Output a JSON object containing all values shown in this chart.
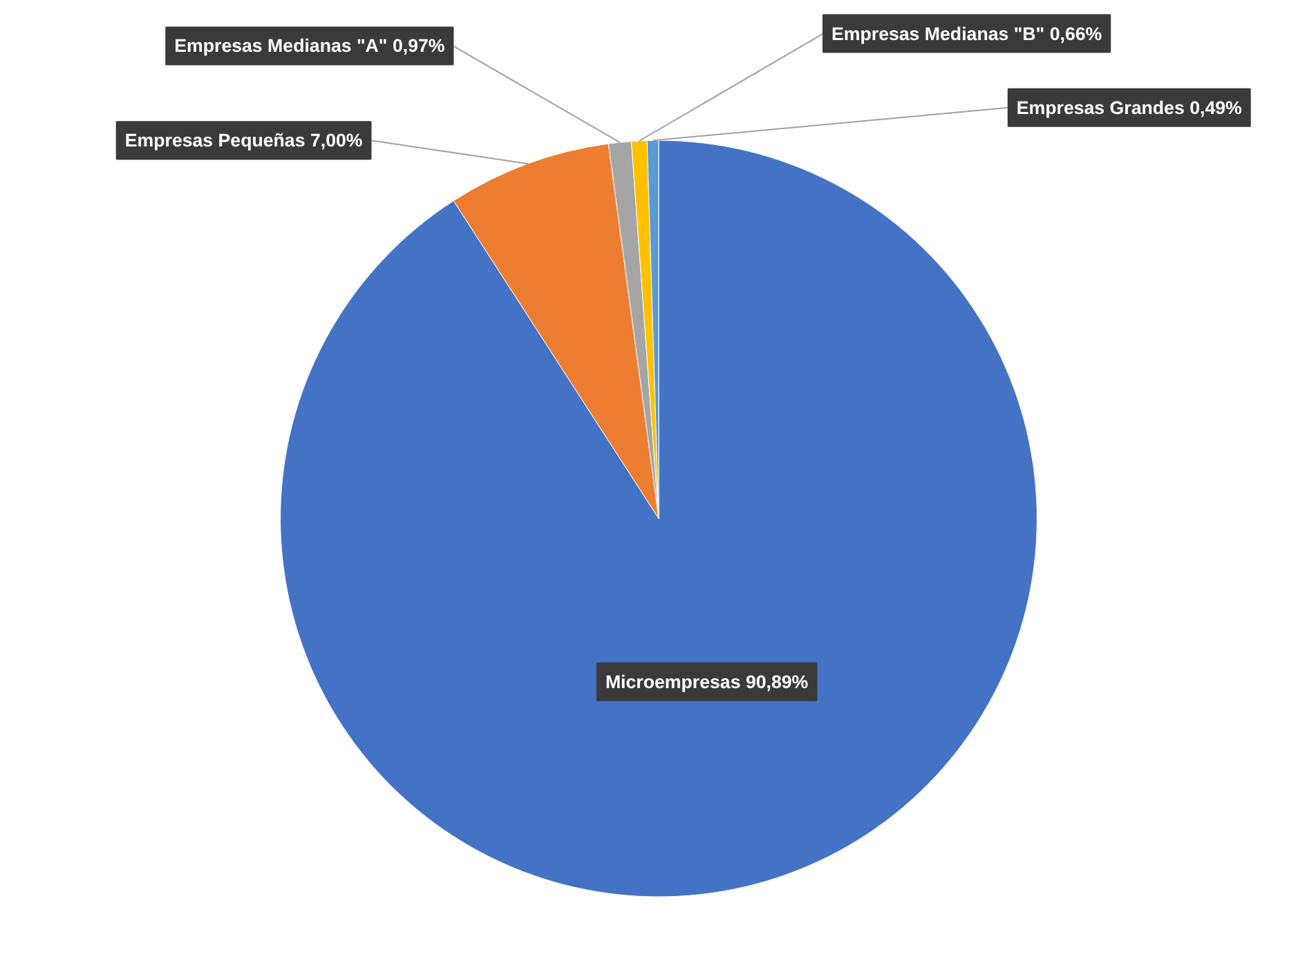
{
  "chart_data": {
    "type": "pie",
    "categories": [
      "Microempresas",
      "Empresas Pequeñas",
      "Empresas Medianas \"A\"",
      "Empresas Medianas \"B\"",
      "Empresas Grandes"
    ],
    "values": [
      90.89,
      7.0,
      0.97,
      0.66,
      0.49
    ],
    "value_labels": [
      "90,89%",
      "7,00%",
      "0,97%",
      "0,66%",
      "0,49%"
    ],
    "colors": [
      "#4472c4",
      "#ed7d31",
      "#a5a5a5",
      "#ffc000",
      "#5b9bd5"
    ]
  }
}
